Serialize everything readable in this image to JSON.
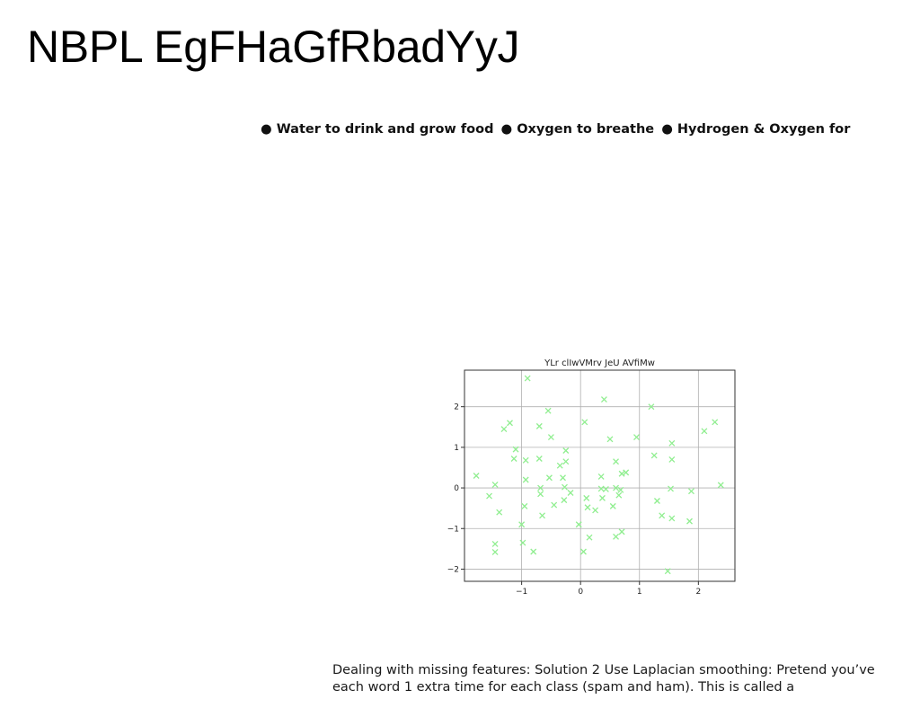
{
  "page": {
    "title": "NBPL EgFHaGfRbadYyJ",
    "bullets": [
      "● Water to drink and grow food",
      "● Oxygen to breathe",
      "● Hydrogen & Oxygen for"
    ],
    "caption": "Dealing with missing features: Solution 2 Use Laplacian smoothing: Pretend you’ve each word 1 extra time for each class (spam and ham). This is called a"
  },
  "chart_data": {
    "type": "scatter",
    "title": "YLr clIwVMrv JeU AVfiMw",
    "xlabel": "",
    "ylabel": "",
    "xlim": [
      -1.97,
      2.62
    ],
    "ylim": [
      -2.3,
      2.9
    ],
    "xticks": [
      -1,
      0,
      1,
      2
    ],
    "yticks": [
      -2,
      -1,
      0,
      1,
      2
    ],
    "xtick_labels": [
      "−1",
      "0",
      "1",
      "2"
    ],
    "ytick_labels": [
      "−2",
      "−1",
      "0",
      "1",
      "2"
    ],
    "grid": true,
    "marker": "x",
    "color": "#90ee90",
    "series": [
      {
        "points": [
          [
            -0.9,
            2.7
          ],
          [
            -0.55,
            1.9
          ],
          [
            0.4,
            2.18
          ],
          [
            1.2,
            2.0
          ],
          [
            2.28,
            1.62
          ],
          [
            -1.3,
            1.45
          ],
          [
            -1.2,
            1.6
          ],
          [
            -0.7,
            1.52
          ],
          [
            0.07,
            1.62
          ],
          [
            0.5,
            1.2
          ],
          [
            0.95,
            1.25
          ],
          [
            1.55,
            1.1
          ],
          [
            2.1,
            1.4
          ],
          [
            -0.5,
            1.25
          ],
          [
            -1.1,
            0.95
          ],
          [
            -1.13,
            0.72
          ],
          [
            -0.93,
            0.68
          ],
          [
            -0.7,
            0.72
          ],
          [
            -0.25,
            0.92
          ],
          [
            -0.25,
            0.65
          ],
          [
            -0.35,
            0.55
          ],
          [
            0.6,
            0.65
          ],
          [
            1.25,
            0.8
          ],
          [
            1.55,
            0.7
          ],
          [
            -1.77,
            0.3
          ],
          [
            -1.45,
            0.08
          ],
          [
            -0.93,
            0.2
          ],
          [
            -0.53,
            0.25
          ],
          [
            -0.3,
            0.25
          ],
          [
            0.35,
            0.28
          ],
          [
            0.77,
            0.38
          ],
          [
            0.7,
            0.35
          ],
          [
            2.38,
            0.07
          ],
          [
            -1.55,
            -0.2
          ],
          [
            -0.68,
            -0.15
          ],
          [
            -0.68,
            0.0
          ],
          [
            -0.27,
            0.02
          ],
          [
            -0.17,
            -0.12
          ],
          [
            0.35,
            -0.02
          ],
          [
            0.43,
            -0.03
          ],
          [
            0.6,
            0.0
          ],
          [
            0.65,
            -0.18
          ],
          [
            0.68,
            -0.05
          ],
          [
            1.53,
            -0.02
          ],
          [
            1.88,
            -0.08
          ],
          [
            -0.95,
            -0.45
          ],
          [
            -0.45,
            -0.42
          ],
          [
            -0.28,
            -0.3
          ],
          [
            0.1,
            -0.25
          ],
          [
            0.37,
            -0.25
          ],
          [
            1.3,
            -0.32
          ],
          [
            -1.38,
            -0.6
          ],
          [
            -0.65,
            -0.68
          ],
          [
            0.12,
            -0.48
          ],
          [
            0.25,
            -0.55
          ],
          [
            0.55,
            -0.45
          ],
          [
            1.38,
            -0.68
          ],
          [
            1.55,
            -0.75
          ],
          [
            1.85,
            -0.82
          ],
          [
            -1.0,
            -0.9
          ],
          [
            -0.03,
            -0.9
          ],
          [
            0.15,
            -1.22
          ],
          [
            0.6,
            -1.2
          ],
          [
            0.7,
            -1.08
          ],
          [
            -1.45,
            -1.38
          ],
          [
            -0.98,
            -1.35
          ],
          [
            -1.45,
            -1.58
          ],
          [
            -0.8,
            -1.57
          ],
          [
            0.05,
            -1.57
          ],
          [
            1.48,
            -2.05
          ]
        ]
      }
    ]
  }
}
